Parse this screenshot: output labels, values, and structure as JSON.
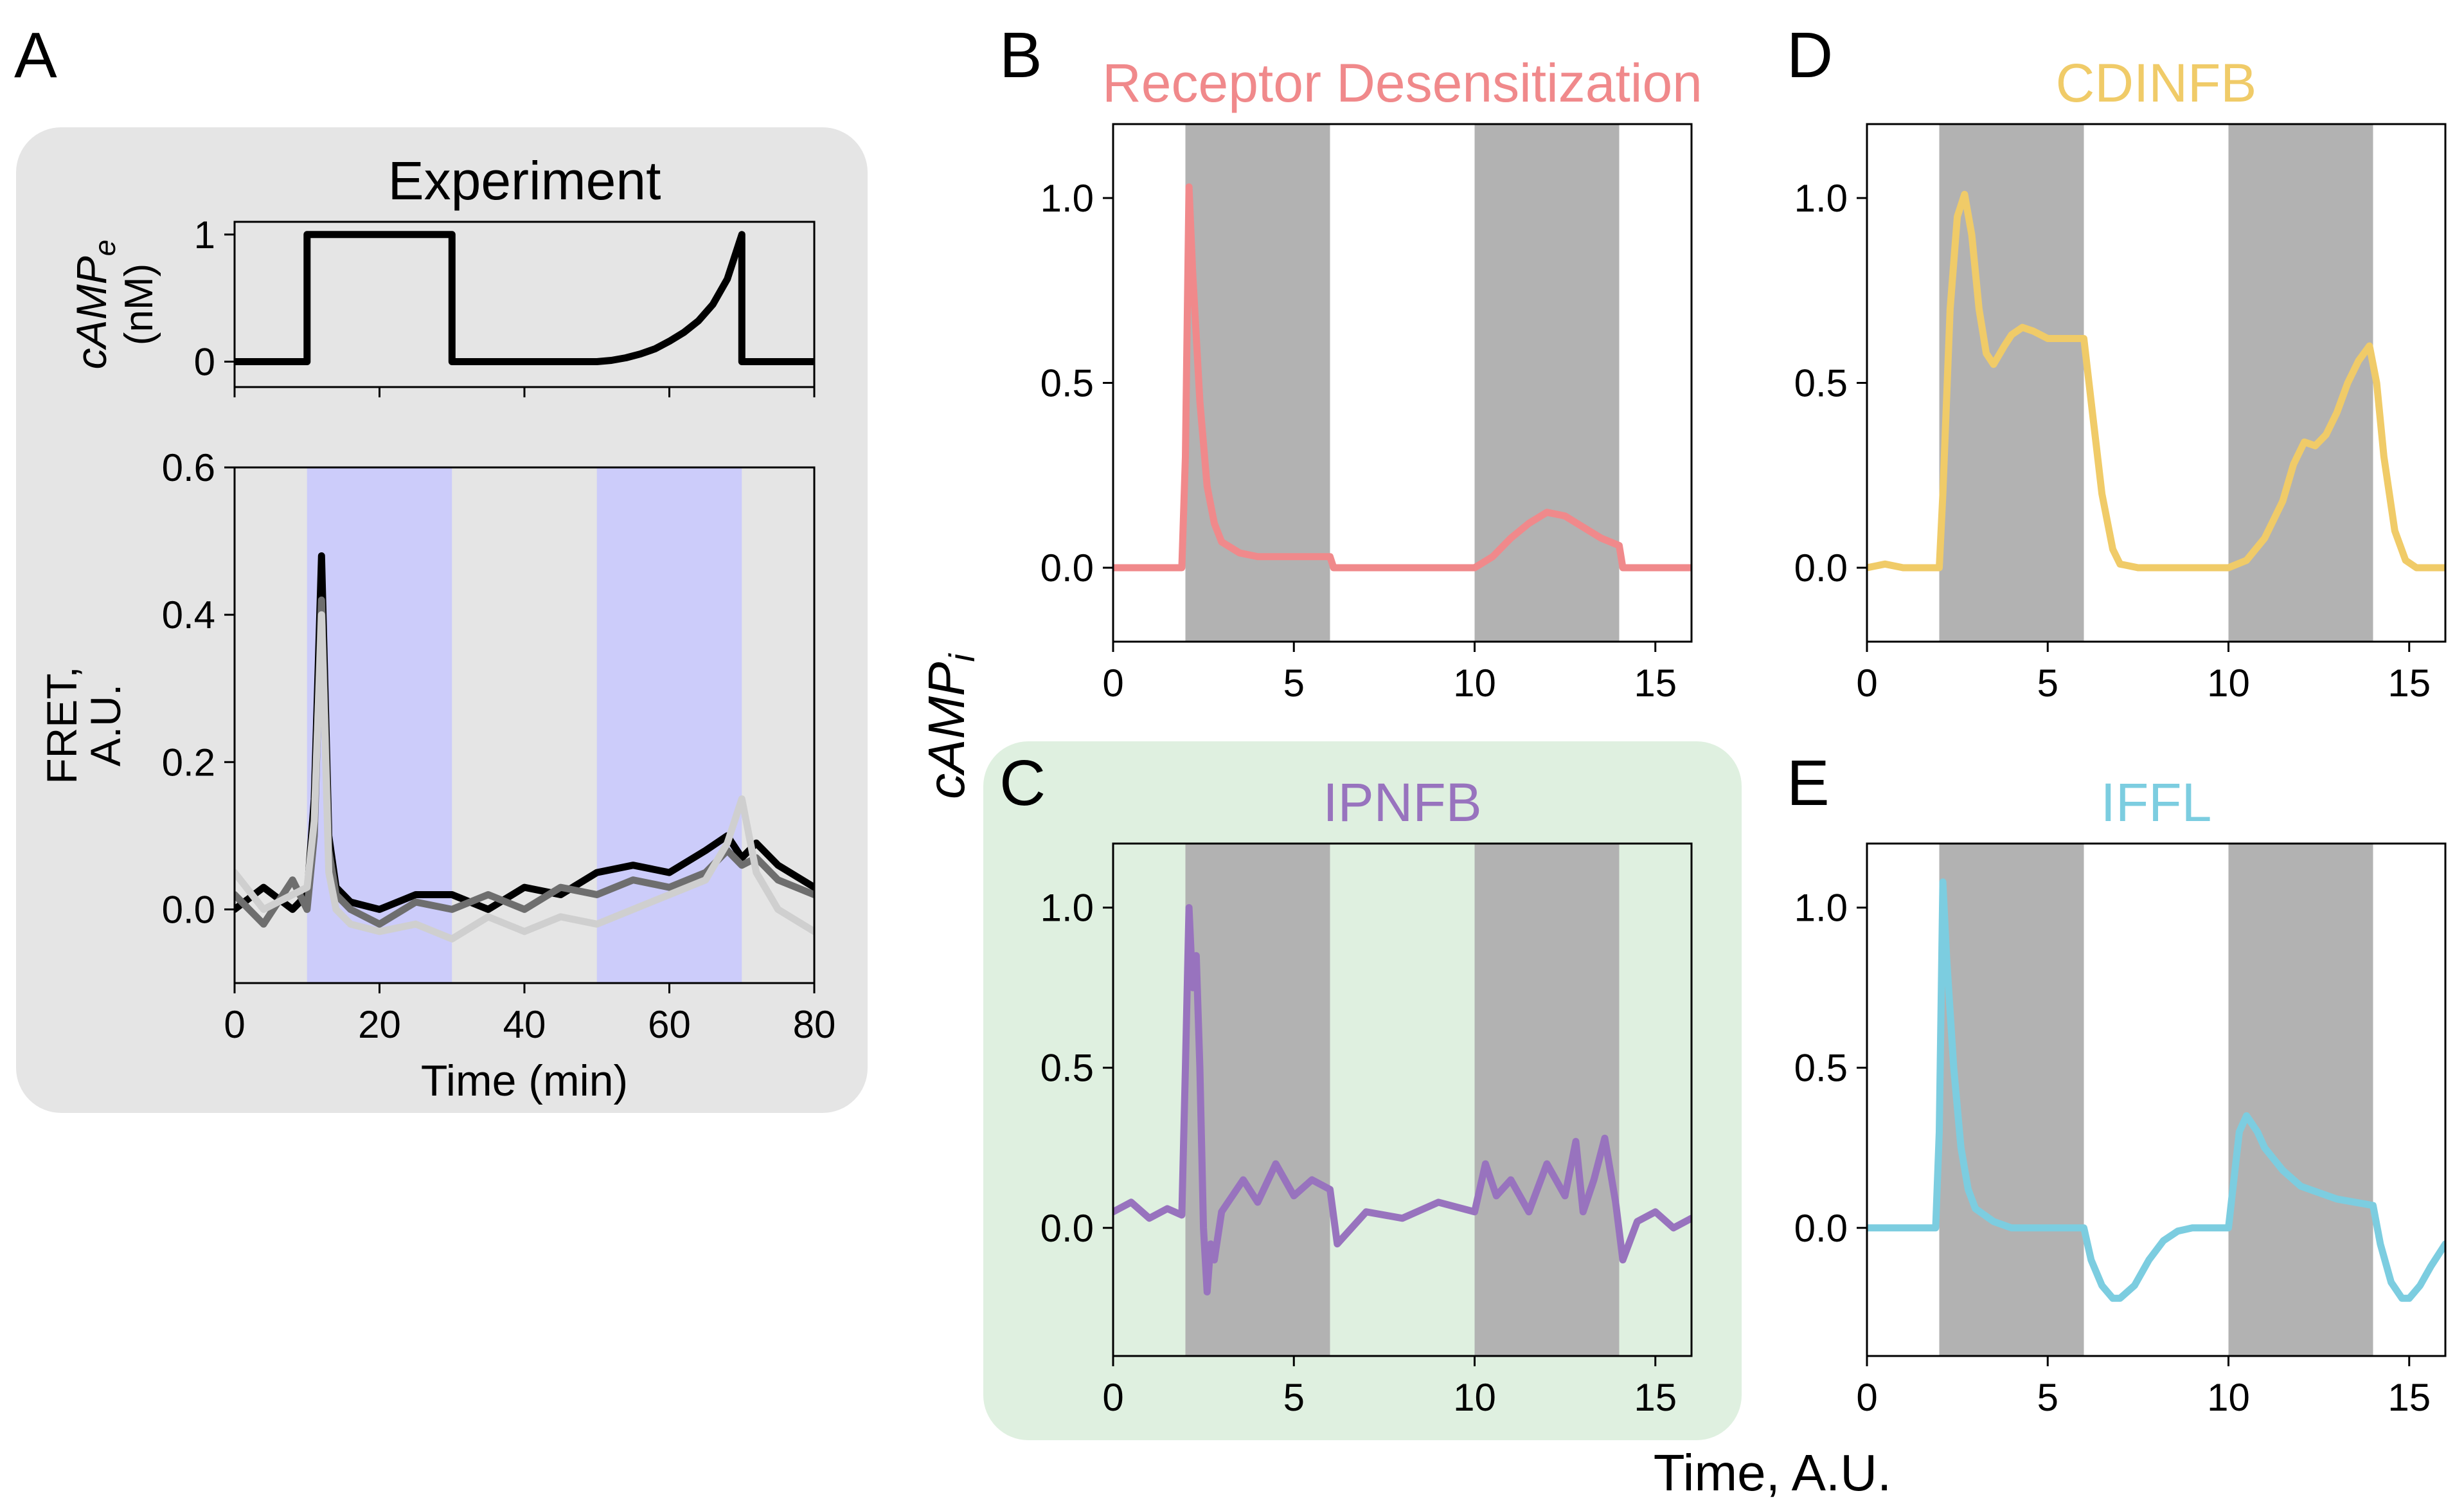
{
  "figure": {
    "panel_letters": [
      "A",
      "B",
      "C",
      "D",
      "E"
    ],
    "shared_ylabel": "cAMP",
    "shared_ylabel_sub": "i",
    "shared_xlabel": "Time, A.U."
  },
  "colors": {
    "panel_a_box": "#e5e5e5",
    "panel_c_box": "#dff0e0",
    "stim_shade_experiment": "#ccccfa",
    "stim_shade_model": "#b2b2b2",
    "receptor_desensitization": "#f0898b",
    "ipnfb": "#9873be",
    "cdinfb": "#f0cb68",
    "iffl": "#7ccde0",
    "trace_black": "#000000",
    "trace_dark_gray": "#6e6e6e",
    "trace_light_gray": "#cfcfcf"
  },
  "chart_data": [
    {
      "id": "A-top",
      "panel": "A",
      "type": "line",
      "title": "Experiment",
      "ylabel": "cAMP",
      "ylabel_sub": "e",
      "ylabel_unit": "(nM)",
      "xlim": [
        0,
        80
      ],
      "ylim": [
        -0.2,
        1.1
      ],
      "yticks": [
        0,
        1
      ],
      "xticks": [
        0,
        20,
        40,
        60,
        80
      ],
      "x_tick_labels_shown": false,
      "series": [
        {
          "color": "#000000",
          "x": [
            0,
            10,
            10,
            30,
            30,
            50,
            52,
            54,
            56,
            58,
            60,
            62,
            64,
            66,
            68,
            70,
            70,
            80
          ],
          "y": [
            0,
            0,
            1,
            1,
            0,
            0,
            0.01,
            0.03,
            0.06,
            0.1,
            0.16,
            0.23,
            0.32,
            0.45,
            0.65,
            1,
            0,
            0
          ]
        }
      ]
    },
    {
      "id": "A-bottom",
      "panel": "A",
      "type": "line",
      "ylabel": "FRET,\nA.U.",
      "xlabel": "Time (min)",
      "xlim": [
        0,
        80
      ],
      "ylim": [
        -0.1,
        0.6
      ],
      "yticks": [
        0.0,
        0.2,
        0.4,
        0.6
      ],
      "xticks": [
        0,
        20,
        40,
        60,
        80
      ],
      "shaded": [
        [
          10,
          30
        ],
        [
          50,
          70
        ]
      ],
      "shade_color": "#ccccfa",
      "series": [
        {
          "color": "#000000",
          "x": [
            0,
            4,
            8,
            10,
            11,
            12,
            13,
            14,
            16,
            20,
            25,
            30,
            35,
            40,
            45,
            50,
            55,
            60,
            65,
            68,
            70,
            72,
            75,
            80
          ],
          "y": [
            0.0,
            0.03,
            0.0,
            0.02,
            0.15,
            0.48,
            0.1,
            0.03,
            0.01,
            0.0,
            0.02,
            0.02,
            0.0,
            0.03,
            0.02,
            0.05,
            0.06,
            0.05,
            0.08,
            0.1,
            0.07,
            0.09,
            0.06,
            0.03
          ]
        },
        {
          "color": "#6e6e6e",
          "x": [
            0,
            4,
            8,
            10,
            11,
            12,
            13,
            14,
            16,
            20,
            25,
            30,
            35,
            40,
            45,
            50,
            55,
            60,
            65,
            68,
            70,
            72,
            75,
            80
          ],
          "y": [
            0.02,
            -0.02,
            0.04,
            0.0,
            0.1,
            0.42,
            0.08,
            0.02,
            0.0,
            -0.02,
            0.01,
            0.0,
            0.02,
            0.0,
            0.03,
            0.02,
            0.04,
            0.03,
            0.05,
            0.08,
            0.06,
            0.07,
            0.04,
            0.02
          ]
        },
        {
          "color": "#cfcfcf",
          "x": [
            0,
            4,
            8,
            10,
            11,
            12,
            13,
            14,
            16,
            20,
            25,
            30,
            35,
            40,
            45,
            50,
            55,
            60,
            65,
            68,
            70,
            72,
            75,
            80
          ],
          "y": [
            0.05,
            0.0,
            0.02,
            0.03,
            0.12,
            0.4,
            0.05,
            0.0,
            -0.02,
            -0.03,
            -0.02,
            -0.04,
            -0.01,
            -0.03,
            -0.01,
            -0.02,
            0.0,
            0.02,
            0.04,
            0.09,
            0.15,
            0.05,
            0.0,
            -0.03
          ]
        }
      ]
    },
    {
      "id": "B",
      "panel": "B",
      "type": "line",
      "title": "Receptor Desensitization",
      "title_color": "#f0898b",
      "xlim": [
        0,
        16
      ],
      "ylim": [
        -0.2,
        1.2
      ],
      "yticks": [
        0.0,
        0.5,
        1.0
      ],
      "xticks": [
        0,
        5,
        10,
        15
      ],
      "shaded": [
        [
          2,
          6
        ],
        [
          10,
          14
        ]
      ],
      "shade_color": "#b2b2b2",
      "series": [
        {
          "color": "#f0898b",
          "x": [
            0,
            1.9,
            2.0,
            2.1,
            2.2,
            2.4,
            2.6,
            2.8,
            3.0,
            3.5,
            4.0,
            5.0,
            6.0,
            6.1,
            10.0,
            10.5,
            11.0,
            11.5,
            12.0,
            12.5,
            13.0,
            13.5,
            14.0,
            14.1,
            16.0
          ],
          "y": [
            0,
            0,
            0.3,
            1.03,
            0.8,
            0.45,
            0.22,
            0.12,
            0.07,
            0.04,
            0.03,
            0.03,
            0.03,
            0.0,
            0.0,
            0.03,
            0.08,
            0.12,
            0.15,
            0.14,
            0.11,
            0.08,
            0.06,
            0.0,
            0.0
          ]
        }
      ]
    },
    {
      "id": "C",
      "panel": "C",
      "type": "line",
      "title": "IPNFB",
      "title_color": "#9873be",
      "xlim": [
        0,
        16
      ],
      "ylim": [
        -0.4,
        1.2
      ],
      "yticks": [
        0.0,
        0.5,
        1.0
      ],
      "xticks": [
        0,
        5,
        10,
        15
      ],
      "shaded": [
        [
          2,
          6
        ],
        [
          10,
          14
        ]
      ],
      "shade_color": "#b2b2b2",
      "series": [
        {
          "color": "#9873be",
          "x": [
            0,
            0.5,
            1.0,
            1.5,
            1.9,
            2.0,
            2.1,
            2.2,
            2.3,
            2.4,
            2.5,
            2.6,
            2.7,
            2.8,
            3.0,
            3.3,
            3.6,
            4.0,
            4.5,
            5.0,
            5.5,
            6.0,
            6.2,
            7.0,
            8.0,
            9.0,
            10.0,
            10.3,
            10.6,
            11.0,
            11.5,
            12.0,
            12.5,
            12.8,
            13.0,
            13.3,
            13.6,
            13.9,
            14.1,
            14.5,
            15.0,
            15.5,
            16.0
          ],
          "y": [
            0.05,
            0.08,
            0.03,
            0.06,
            0.04,
            0.5,
            1.0,
            0.75,
            0.85,
            0.5,
            0.0,
            -0.2,
            -0.05,
            -0.1,
            0.05,
            0.1,
            0.15,
            0.08,
            0.2,
            0.1,
            0.15,
            0.12,
            -0.05,
            0.05,
            0.03,
            0.08,
            0.05,
            0.2,
            0.1,
            0.15,
            0.05,
            0.2,
            0.1,
            0.27,
            0.05,
            0.15,
            0.28,
            0.08,
            -0.1,
            0.02,
            0.05,
            0.0,
            0.03
          ]
        }
      ]
    },
    {
      "id": "D",
      "panel": "D",
      "type": "line",
      "title": "CDINFB",
      "title_color": "#f0cb68",
      "xlim": [
        0,
        16
      ],
      "ylim": [
        -0.2,
        1.2
      ],
      "yticks": [
        0.0,
        0.5,
        1.0
      ],
      "xticks": [
        0,
        5,
        10,
        15
      ],
      "shaded": [
        [
          2,
          6
        ],
        [
          10,
          14
        ]
      ],
      "shade_color": "#b2b2b2",
      "series": [
        {
          "color": "#f0cb68",
          "x": [
            0,
            0.5,
            1.0,
            1.5,
            2.0,
            2.1,
            2.3,
            2.5,
            2.7,
            2.9,
            3.1,
            3.3,
            3.5,
            3.8,
            4.0,
            4.3,
            4.6,
            5.0,
            5.5,
            6.0,
            6.2,
            6.5,
            6.8,
            7.0,
            7.5,
            10.0,
            10.5,
            11.0,
            11.5,
            11.8,
            12.1,
            12.4,
            12.7,
            13.0,
            13.3,
            13.6,
            13.9,
            14.1,
            14.3,
            14.6,
            14.9,
            15.2,
            16.0
          ],
          "y": [
            0.0,
            0.01,
            0.0,
            0.0,
            0.0,
            0.2,
            0.7,
            0.95,
            1.01,
            0.9,
            0.7,
            0.58,
            0.55,
            0.6,
            0.63,
            0.65,
            0.64,
            0.62,
            0.62,
            0.62,
            0.45,
            0.2,
            0.05,
            0.01,
            0.0,
            0.0,
            0.02,
            0.08,
            0.18,
            0.28,
            0.34,
            0.33,
            0.36,
            0.42,
            0.5,
            0.56,
            0.6,
            0.5,
            0.3,
            0.1,
            0.02,
            0.0,
            0.0
          ]
        }
      ]
    },
    {
      "id": "E",
      "panel": "E",
      "type": "line",
      "title": "IFFL",
      "title_color": "#7ccde0",
      "xlim": [
        0,
        16
      ],
      "ylim": [
        -0.4,
        1.2
      ],
      "yticks": [
        0.0,
        0.5,
        1.0
      ],
      "xticks": [
        0,
        5,
        10,
        15
      ],
      "shaded": [
        [
          2,
          6
        ],
        [
          10,
          14
        ]
      ],
      "shade_color": "#b2b2b2",
      "series": [
        {
          "color": "#7ccde0",
          "x": [
            0,
            1.9,
            2.0,
            2.1,
            2.2,
            2.4,
            2.6,
            2.8,
            3.0,
            3.5,
            4.0,
            5.0,
            6.0,
            6.2,
            6.5,
            6.8,
            7.0,
            7.4,
            7.8,
            8.2,
            8.6,
            9.0,
            9.5,
            10.0,
            10.1,
            10.3,
            10.5,
            10.8,
            11.0,
            11.5,
            12.0,
            13.0,
            14.0,
            14.2,
            14.5,
            14.8,
            15.0,
            15.3,
            15.6,
            16.0
          ],
          "y": [
            0,
            0,
            0.3,
            1.08,
            0.85,
            0.5,
            0.25,
            0.12,
            0.06,
            0.02,
            0.0,
            0.0,
            0.0,
            -0.1,
            -0.18,
            -0.22,
            -0.22,
            -0.18,
            -0.1,
            -0.04,
            -0.01,
            0.0,
            0.0,
            0.0,
            0.1,
            0.3,
            0.35,
            0.3,
            0.25,
            0.18,
            0.13,
            0.09,
            0.07,
            -0.05,
            -0.17,
            -0.22,
            -0.22,
            -0.18,
            -0.12,
            -0.05
          ]
        }
      ]
    }
  ]
}
